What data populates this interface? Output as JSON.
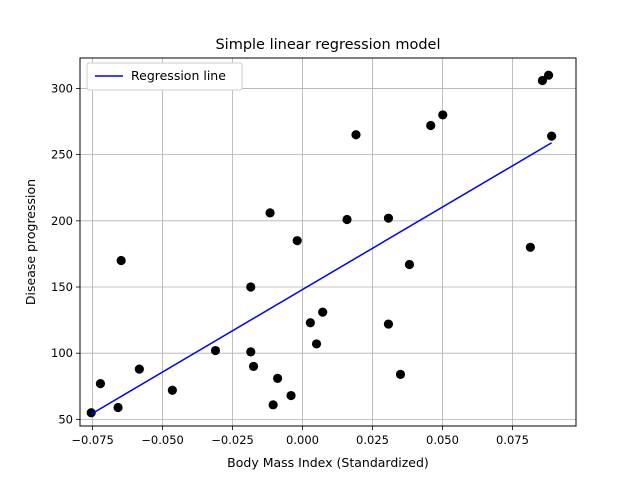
{
  "chart_data": {
    "type": "scatter",
    "title": "Simple linear regression model",
    "xlabel": "Body Mass Index (Standardized)",
    "ylabel": "Disease progression",
    "xlim": [
      -0.0795,
      0.0977
    ],
    "ylim": [
      45,
      323
    ],
    "x_ticks": [
      -0.075,
      -0.05,
      -0.025,
      0.0,
      0.025,
      0.05,
      0.075
    ],
    "x_tick_labels": [
      "−0.075",
      "−0.050",
      "−0.025",
      "0.000",
      "0.025",
      "0.050",
      "0.075"
    ],
    "y_ticks": [
      50,
      100,
      150,
      200,
      250,
      300
    ],
    "y_tick_labels": [
      "50",
      "100",
      "150",
      "200",
      "250",
      "300"
    ],
    "grid": true,
    "legend_position": "top-left",
    "colors": {
      "points": "#000000",
      "line": "#0000ff",
      "grid": "#b0b0b0"
    },
    "series": [
      {
        "kind": "scatter",
        "points": [
          [
            -0.0755,
            55
          ],
          [
            -0.0722,
            77
          ],
          [
            -0.0659,
            59
          ],
          [
            -0.0648,
            170
          ],
          [
            -0.0583,
            88
          ],
          [
            -0.0465,
            72
          ],
          [
            -0.0311,
            102
          ],
          [
            -0.0185,
            150
          ],
          [
            -0.0185,
            101
          ],
          [
            -0.0175,
            90
          ],
          [
            -0.0116,
            206
          ],
          [
            -0.0105,
            61
          ],
          [
            -0.0089,
            81
          ],
          [
            -0.0041,
            68
          ],
          [
            -0.0019,
            185
          ],
          [
            0.0028,
            123
          ],
          [
            0.005,
            107
          ],
          [
            0.0072,
            131
          ],
          [
            0.0159,
            201
          ],
          [
            0.0191,
            265
          ],
          [
            0.0307,
            202
          ],
          [
            0.0307,
            122
          ],
          [
            0.035,
            84
          ],
          [
            0.0382,
            167
          ],
          [
            0.0458,
            272
          ],
          [
            0.0501,
            280
          ],
          [
            0.0814,
            180
          ],
          [
            0.0857,
            306
          ],
          [
            0.0879,
            310
          ],
          [
            0.089,
            264
          ]
        ]
      },
      {
        "kind": "line",
        "name": "Regression line",
        "points": [
          [
            -0.0755,
            54
          ],
          [
            0.089,
            259
          ]
        ]
      }
    ]
  }
}
